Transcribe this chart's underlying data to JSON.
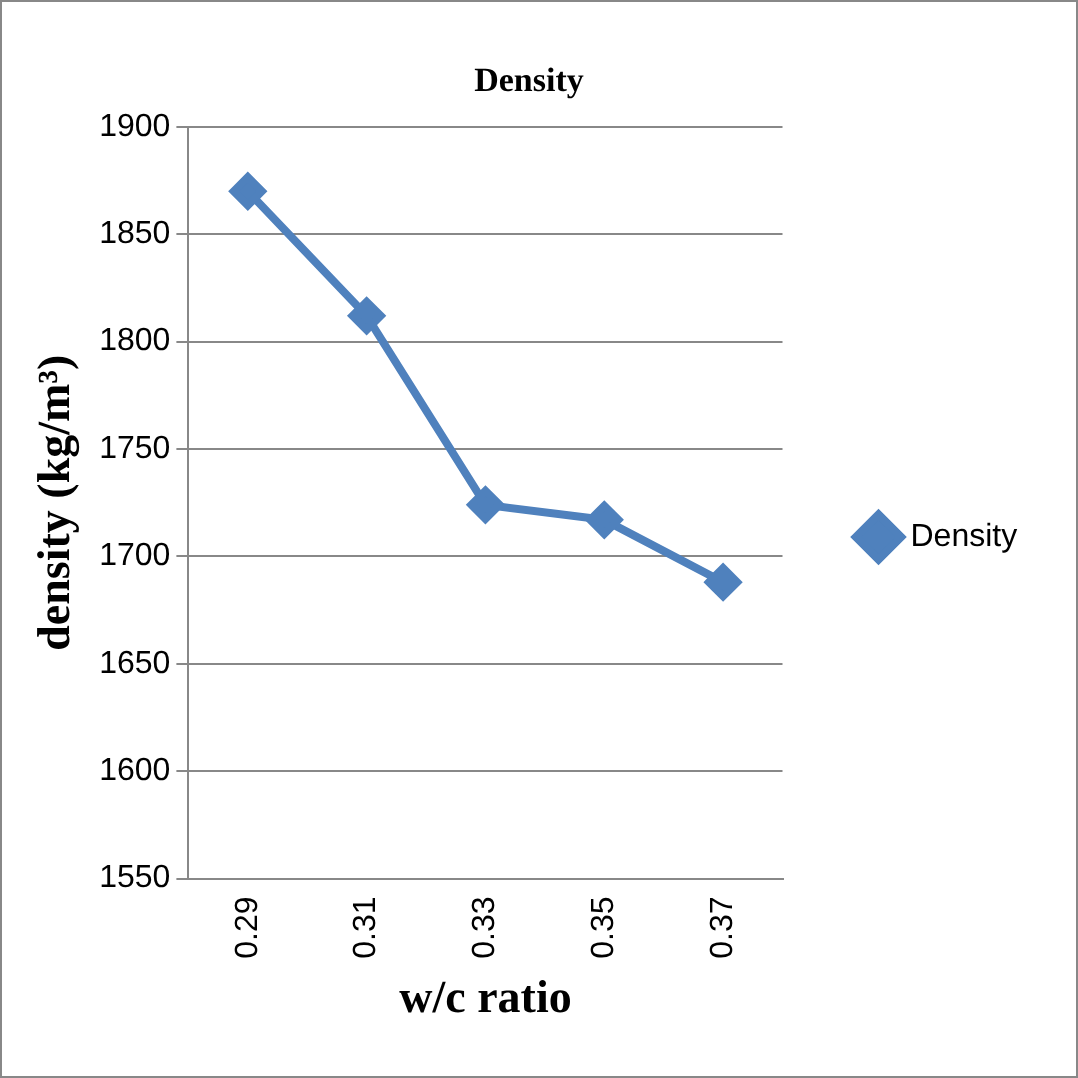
{
  "chart_data": {
    "type": "line",
    "title": "Density",
    "xlabel": "w/c ratio",
    "ylabel": "density (kg/m³)",
    "categories": [
      "0.29",
      "0.31",
      "0.33",
      "0.35",
      "0.37"
    ],
    "series": [
      {
        "name": "Density",
        "color": "#4f81bd",
        "values": [
          1870,
          1812,
          1724,
          1717,
          1688
        ]
      }
    ],
    "ylim": [
      1550,
      1900
    ],
    "yticks": [
      1550,
      1600,
      1650,
      1700,
      1750,
      1800,
      1850,
      1900
    ],
    "grid": "y",
    "legend": "right",
    "marker": "diamond",
    "line_style": "solid"
  }
}
